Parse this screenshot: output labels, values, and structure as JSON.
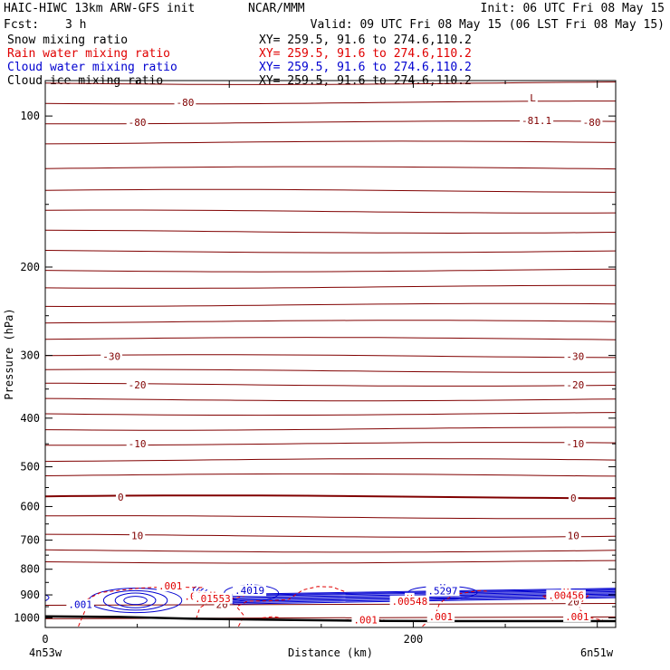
{
  "header": {
    "title_left": "HAIC-HIWC 13km ARW-GFS init",
    "producer": "NCAR/MMM",
    "init": "Init: 06 UTC Fri 08 May 15",
    "fcst_label": "Fcst:",
    "fcst_value": "3 h",
    "valid": "Valid: 09 UTC Fri 08 May 15 (06 LST Fri 08 May 15)"
  },
  "fields": [
    {
      "name": "Snow mixing ratio",
      "xy": "XY= 259.5, 91.6 to 274.6,110.2",
      "color": "#000000"
    },
    {
      "name": "Rain water mixing ratio",
      "xy": "XY= 259.5, 91.6 to 274.6,110.2",
      "color": "#e00000"
    },
    {
      "name": "Cloud water mixing ratio",
      "xy": "XY= 259.5, 91.6 to 274.6,110.2",
      "color": "#0000d0"
    },
    {
      "name": "Cloud ice mixing ratio",
      "xy": "XY= 259.5, 91.6 to 274.6,110.2",
      "color": "#000000"
    }
  ],
  "chart_data": {
    "type": "cross-section contour",
    "ylabel": "Pressure (hPa)",
    "xlabel": "Distance (km)",
    "y_scale": "log",
    "ylim": [
      85,
      1045
    ],
    "xlim": [
      0,
      310
    ],
    "y_ticks": [
      100,
      200,
      300,
      400,
      500,
      600,
      700,
      800,
      900,
      1000
    ],
    "x_ticks": [
      0,
      200
    ],
    "x_start_label": "4n53w",
    "x_end_label": "6n51w",
    "temperature_color": "#800000",
    "rain_color": "#e00000",
    "cloud_water_color": "#0000d0",
    "temperature_isotherms_p": [
      86,
      94,
      103,
      113,
      127,
      141,
      155,
      170,
      186,
      203,
      219,
      238,
      257,
      278,
      301,
      322,
      343,
      367,
      392,
      420,
      450,
      485,
      520,
      574,
      630,
      686,
      735,
      773
    ],
    "isotherm_0_p": 574,
    "temperature_labels": [
      {
        "text": "-80",
        "x": 76,
        "p": 94
      },
      {
        "text": "-80",
        "x": 50,
        "p": 103
      },
      {
        "text": "-81.1",
        "x": 267,
        "p": 102
      },
      {
        "text": "-80",
        "x": 297,
        "p": 103
      },
      {
        "text": "-30",
        "x": 36,
        "p": 301
      },
      {
        "text": "-30",
        "x": 288,
        "p": 301
      },
      {
        "text": "-20",
        "x": 50,
        "p": 343
      },
      {
        "text": "-20",
        "x": 288,
        "p": 343
      },
      {
        "text": "-10",
        "x": 50,
        "p": 450
      },
      {
        "text": "-10",
        "x": 288,
        "p": 450
      },
      {
        "text": "0",
        "x": 41,
        "p": 574
      },
      {
        "text": "0",
        "x": 287,
        "p": 577
      },
      {
        "text": "10",
        "x": 50,
        "p": 686
      },
      {
        "text": "10",
        "x": 287,
        "p": 686
      },
      {
        "text": "20",
        "x": 96,
        "p": 940
      },
      {
        "text": "20",
        "x": 287,
        "p": 929
      }
    ],
    "rain_labels": [
      {
        "text": ".001",
        "x": 68,
        "p": 864
      },
      {
        "text": ".001",
        "x": 82,
        "p": 906
      },
      {
        "text": ".001",
        "x": 19,
        "p": 942
      },
      {
        "text": ".001",
        "x": 174,
        "p": 1009
      },
      {
        "text": ".001",
        "x": 215,
        "p": 994
      },
      {
        "text": ".001",
        "x": 289,
        "p": 994
      }
    ],
    "cloud_water_labels": [
      {
        "text": ".001",
        "x": 19,
        "p": 940
      }
    ],
    "maxima": [
      {
        "symbol": "H",
        "value": ".4019",
        "x": 111,
        "p": 886,
        "color": "#0000d0"
      },
      {
        "symbol": "H",
        "value": ".5297",
        "x": 216,
        "p": 887,
        "color": "#0000d0"
      },
      {
        "symbol": "H",
        "value": ".01553",
        "x": 91,
        "p": 918,
        "color": "#e00000"
      },
      {
        "symbol": "H",
        "value": ".00548",
        "x": 198,
        "p": 930,
        "color": "#e00000"
      },
      {
        "symbol": "H",
        "value": ".00456",
        "x": 283,
        "p": 905,
        "color": "#e00000"
      }
    ],
    "minima": [
      {
        "symbol": "L",
        "value": "",
        "x": 265,
        "p": 92,
        "color": "#800000"
      }
    ],
    "surface": {
      "x": [
        0,
        40,
        80,
        130,
        180,
        240,
        310
      ],
      "p": [
        993,
        996,
        1004,
        1009,
        1014,
        1015,
        1015
      ],
      "color": "#000000"
    }
  }
}
